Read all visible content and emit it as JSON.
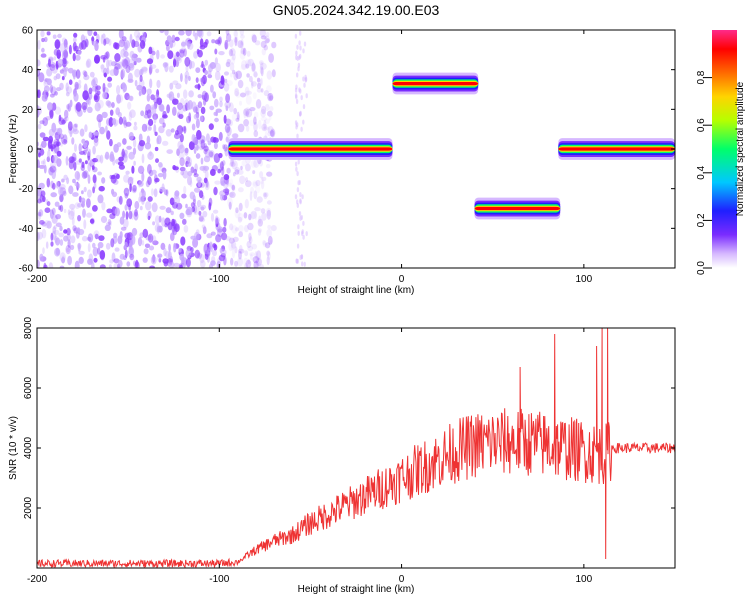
{
  "title": "GN05.2024.342.19.00.E03",
  "chart_data": [
    {
      "type": "heatmap",
      "xlabel": "Height of straight line (km)",
      "ylabel": "Frequency (Hz)",
      "xlim": [
        -200,
        150
      ],
      "ylim": [
        -60,
        60
      ],
      "xticks": [
        "-200",
        "-100",
        "0",
        "100"
      ],
      "yticks": [
        "-60",
        "-40",
        "-20",
        "0",
        "20",
        "40",
        "60"
      ],
      "colorbar": {
        "label": "Normalized spectral amplitude",
        "range": [
          0.0,
          1.0
        ],
        "ticks": [
          "0.0",
          "0.2",
          "0.4",
          "0.6",
          "0.8"
        ],
        "colors": [
          "#ffffff",
          "#d6b8ff",
          "#7a2cff",
          "#1f1fff",
          "#00c8ff",
          "#00ff6a",
          "#b6ff00",
          "#ffd400",
          "#ff6a00",
          "#ff0000",
          "#ff2a8a"
        ]
      },
      "noise_region": {
        "x": [
          -200,
          -80
        ],
        "y": [
          -60,
          60
        ]
      },
      "segments": [
        {
          "x": [
            -95,
            -5
          ],
          "freq": 0,
          "peak": 0.95
        },
        {
          "x": [
            -5,
            42
          ],
          "freq": 33,
          "peak": 0.95
        },
        {
          "x": [
            40,
            87
          ],
          "freq": -30,
          "peak": 0.95
        },
        {
          "x": [
            86,
            150
          ],
          "freq": 0,
          "peak": 0.95
        }
      ]
    },
    {
      "type": "line",
      "xlabel": "Height of straight line (km)",
      "ylabel": "SNR (10 * v/v)",
      "xlim": [
        -200,
        150
      ],
      "ylim": [
        0,
        8000
      ],
      "xticks": [
        "-200",
        "-100",
        "0",
        "100"
      ],
      "yticks": [
        "2000",
        "4000",
        "6000",
        "8000"
      ],
      "color": "#ee3333",
      "envelope": {
        "x": [
          -200,
          -100,
          -90,
          -80,
          -70,
          -60,
          -50,
          -40,
          -30,
          -20,
          -10,
          0,
          10,
          20,
          30,
          40,
          50,
          60,
          70,
          80,
          90,
          100,
          110,
          113,
          115,
          130,
          150
        ],
        "y": [
          150,
          150,
          200,
          600,
          900,
          1100,
          1500,
          1800,
          2100,
          2400,
          2700,
          3000,
          3300,
          3600,
          3900,
          4100,
          4200,
          4200,
          4200,
          4100,
          4000,
          3900,
          3800,
          3800,
          4000,
          4000,
          4000
        ]
      },
      "spikes": [
        {
          "x": 65,
          "y": 6700
        },
        {
          "x": 84,
          "y": 7800
        },
        {
          "x": 107,
          "y": 7400
        },
        {
          "x": 110,
          "y": 8000
        },
        {
          "x": 113,
          "y": 8000
        },
        {
          "x": 112,
          "y": 300
        }
      ]
    }
  ]
}
